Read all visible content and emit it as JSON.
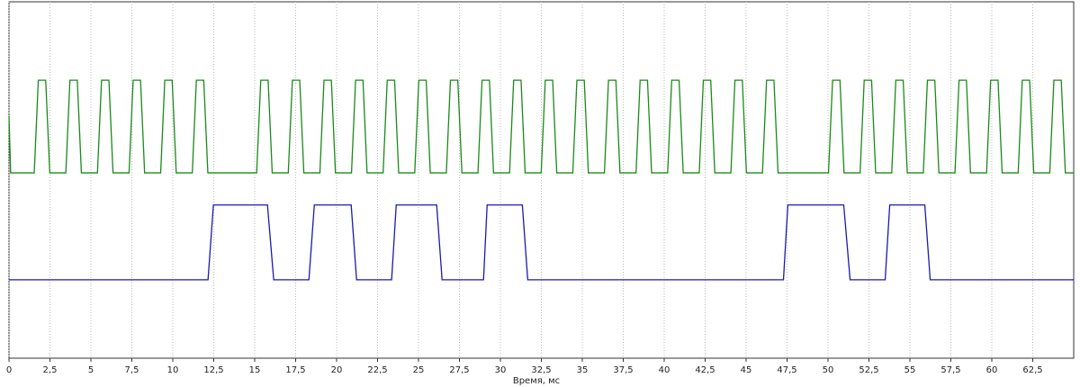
{
  "chart_data": {
    "type": "line",
    "xlabel": "Время, мс",
    "xlim": [
      0,
      65
    ],
    "ylim": [
      0,
      100
    ],
    "xticks": [
      0,
      {
        "value": 2.5,
        "label": "2,5"
      },
      5,
      {
        "value": 7.5,
        "label": "7,5"
      },
      10,
      {
        "value": 12.5,
        "label": "12,5"
      },
      15,
      {
        "value": 17.5,
        "label": "17,5"
      },
      20,
      {
        "value": 22.5,
        "label": "22,5"
      },
      25,
      {
        "value": 27.5,
        "label": "27,5"
      },
      30,
      {
        "value": 32.5,
        "label": "32,5"
      },
      35,
      {
        "value": 37.5,
        "label": "37,5"
      },
      40,
      {
        "value": 42.5,
        "label": "42,5"
      },
      45,
      {
        "value": 47.5,
        "label": "47,5"
      },
      50,
      {
        "value": 52.5,
        "label": "52,5"
      },
      55,
      {
        "value": 57.5,
        "label": "57,5"
      },
      60,
      {
        "value": 62.5,
        "label": "62,5"
      }
    ],
    "grid": true,
    "series": [
      {
        "color": "#1a8a1a",
        "x": [
          0,
          0.1,
          1.54,
          1.79,
          2.24,
          2.49,
          3.47,
          3.72,
          4.17,
          4.42,
          5.4,
          5.65,
          6.1,
          6.35,
          7.33,
          7.58,
          8.03,
          8.28,
          9.26,
          9.51,
          9.96,
          10.21,
          11.19,
          11.44,
          11.89,
          12.14,
          15.12,
          15.37,
          15.82,
          16.07,
          17.05,
          17.3,
          17.75,
          18.0,
          18.98,
          19.23,
          19.68,
          19.93,
          20.91,
          21.16,
          21.61,
          21.86,
          22.84,
          23.09,
          23.54,
          23.79,
          24.77,
          25.02,
          25.47,
          25.72,
          26.7,
          26.95,
          27.4,
          27.65,
          28.63,
          28.88,
          29.33,
          29.58,
          30.56,
          30.81,
          31.26,
          31.51,
          32.49,
          32.74,
          33.19,
          33.44,
          34.42,
          34.67,
          35.12,
          35.37,
          36.35,
          36.6,
          37.05,
          37.3,
          38.28,
          38.53,
          38.98,
          39.23,
          40.21,
          40.46,
          40.91,
          41.16,
          42.14,
          42.39,
          42.84,
          43.09,
          44.07,
          44.32,
          44.77,
          45.02,
          46.0,
          46.25,
          46.7,
          46.95,
          50.03,
          50.28,
          50.73,
          50.98,
          51.96,
          52.21,
          52.66,
          52.91,
          53.89,
          54.14,
          54.59,
          54.84,
          55.82,
          56.07,
          56.52,
          56.77,
          57.75,
          58.0,
          58.45,
          58.7,
          59.68,
          59.93,
          60.38,
          60.63,
          61.61,
          61.86,
          62.31,
          62.56,
          63.54,
          63.79,
          64.24,
          64.49,
          65
        ],
        "values": [
          68,
          52,
          52,
          78,
          78,
          52,
          52,
          78,
          78,
          52,
          52,
          78,
          78,
          52,
          52,
          78,
          78,
          52,
          52,
          78,
          78,
          52,
          52,
          78,
          78,
          52,
          52,
          78,
          78,
          52,
          52,
          78,
          78,
          52,
          52,
          78,
          78,
          52,
          52,
          78,
          78,
          52,
          52,
          78,
          78,
          52,
          52,
          78,
          78,
          52,
          52,
          78,
          78,
          52,
          52,
          78,
          78,
          52,
          52,
          78,
          78,
          52,
          52,
          78,
          78,
          52,
          52,
          78,
          78,
          52,
          52,
          78,
          78,
          52,
          52,
          78,
          78,
          52,
          52,
          78,
          78,
          52,
          52,
          78,
          78,
          52,
          52,
          78,
          78,
          52,
          52,
          78,
          78,
          52,
          52,
          78,
          78,
          52,
          52,
          78,
          78,
          52,
          52,
          78,
          78,
          52,
          52,
          78,
          78,
          52,
          52,
          78,
          78,
          52,
          52,
          78,
          78,
          52,
          52,
          78,
          78,
          52,
          52,
          78,
          78,
          52,
          52
        ]
      },
      {
        "color": "#1a1ab0",
        "x": [
          0,
          12.15,
          12.48,
          15.78,
          16.16,
          18.31,
          18.64,
          20.89,
          21.22,
          23.36,
          23.64,
          26.11,
          26.44,
          28.97,
          29.19,
          31.34,
          31.67,
          47.28,
          47.55,
          50.96,
          51.35,
          53.49,
          53.77,
          55.91,
          56.24,
          65
        ],
        "values": [
          22,
          22,
          43,
          43,
          22,
          22,
          43,
          43,
          22,
          22,
          43,
          43,
          22,
          22,
          43,
          43,
          22,
          22,
          43,
          43,
          22,
          22,
          43,
          43,
          22,
          22
        ]
      }
    ]
  }
}
